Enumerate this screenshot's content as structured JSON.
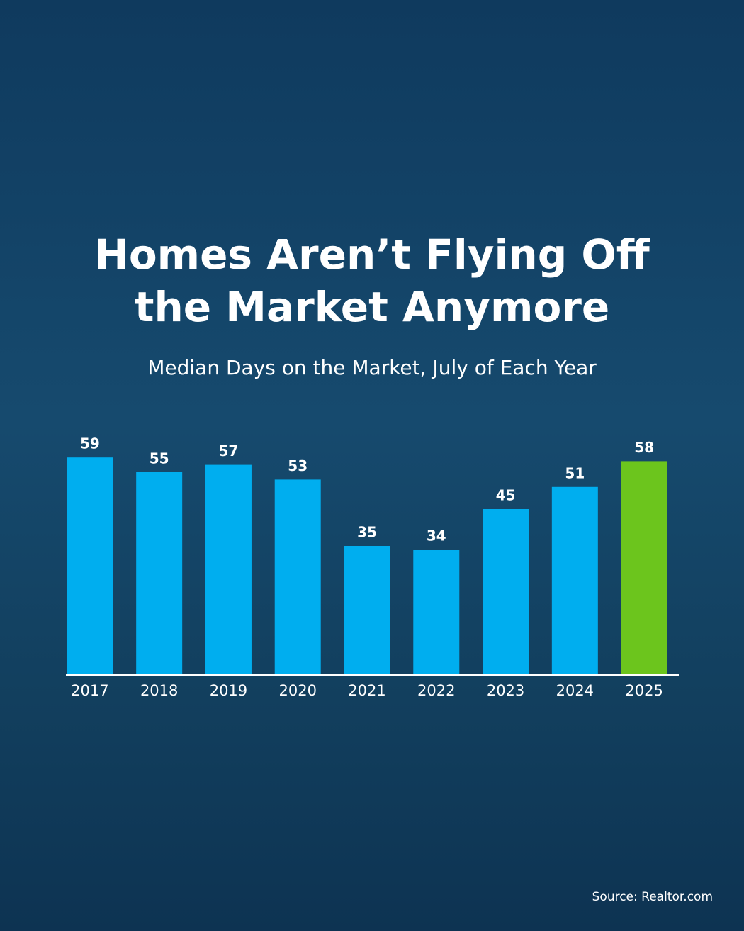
{
  "chart_data": {
    "type": "bar",
    "title": "Homes Aren’t Flying Off the Market Anymore",
    "subtitle": "Median Days on the Market, July of Each Year",
    "categories": [
      "2017",
      "2018",
      "2019",
      "2020",
      "2021",
      "2022",
      "2023",
      "2024",
      "2025"
    ],
    "values": [
      59,
      55,
      57,
      53,
      35,
      34,
      45,
      51,
      58
    ],
    "colors": [
      "#00aeef",
      "#00aeef",
      "#00aeef",
      "#00aeef",
      "#00aeef",
      "#00aeef",
      "#00aeef",
      "#00aeef",
      "#6cc51d"
    ],
    "ylim": [
      0,
      65
    ],
    "source": "Source: Realtor.com"
  }
}
